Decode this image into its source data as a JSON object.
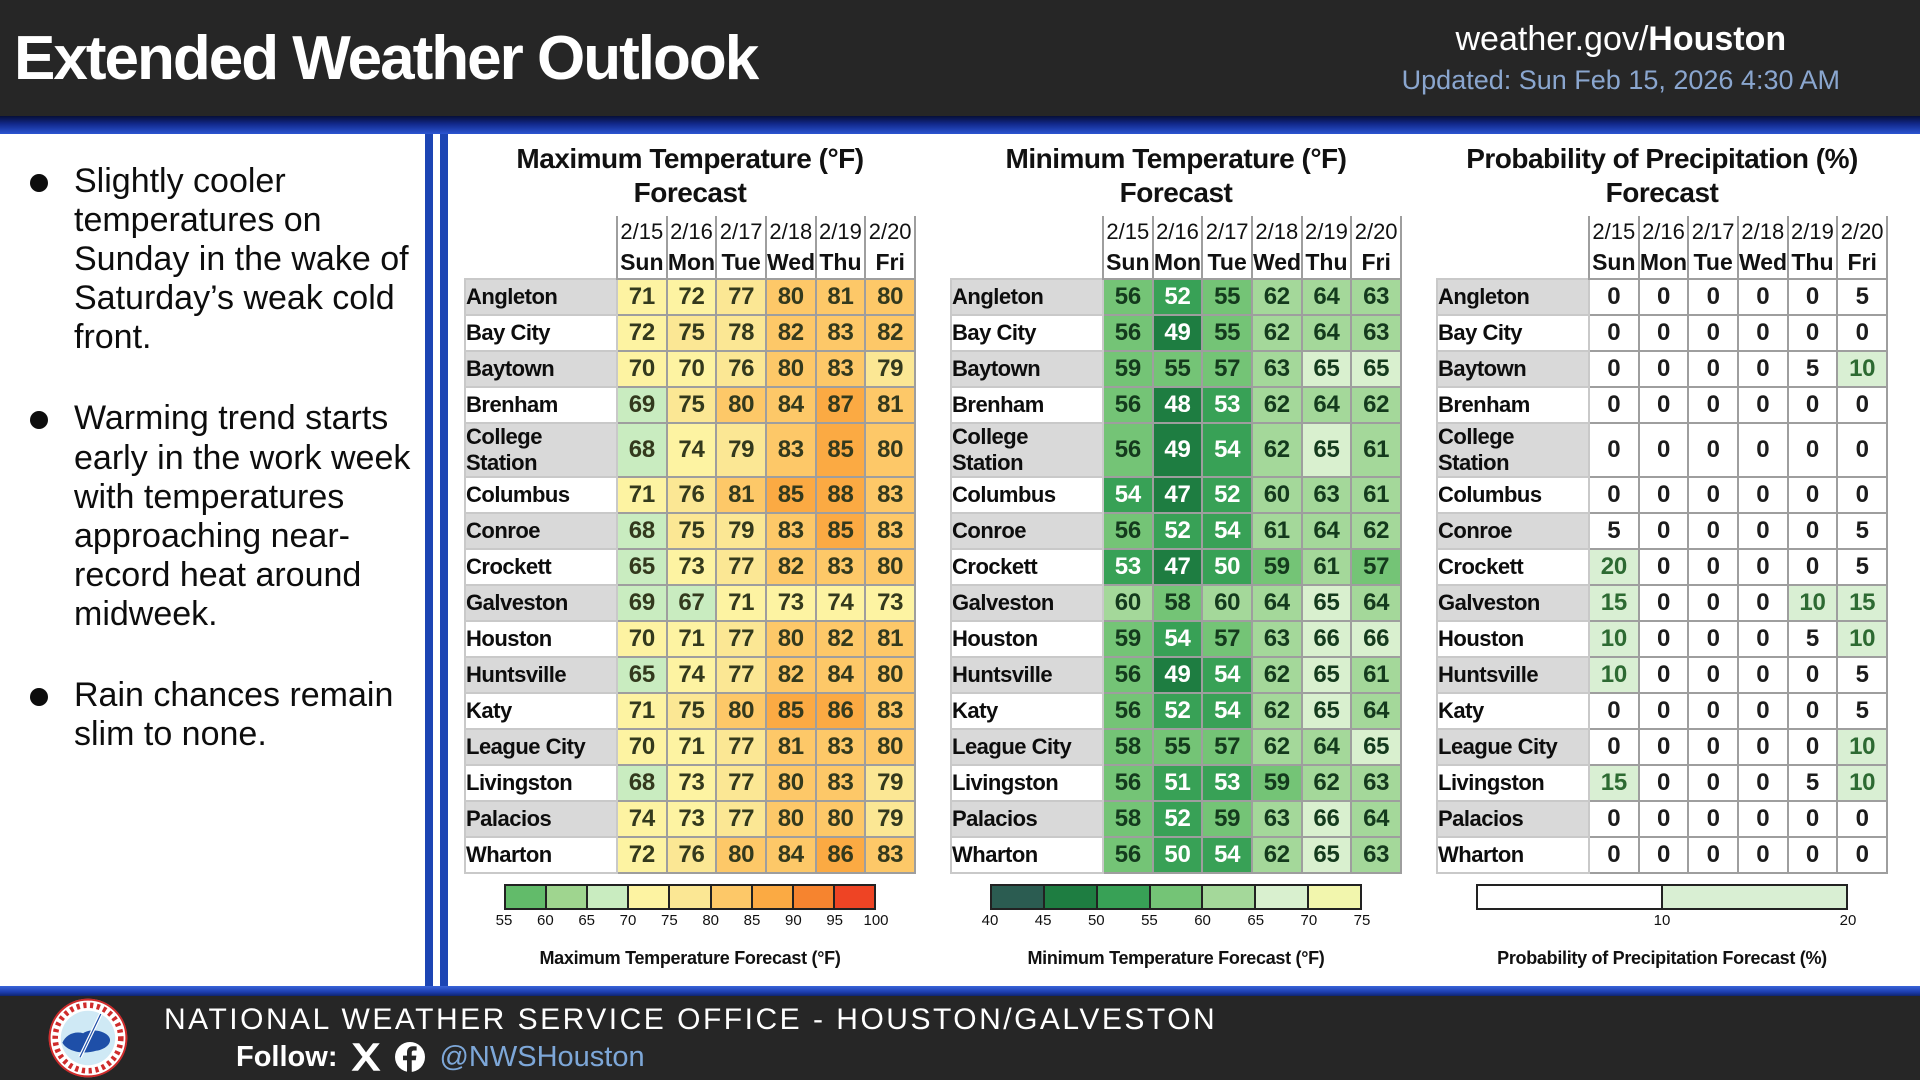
{
  "header": {
    "title": "Extended Weather Outlook",
    "site_prefix": "weather.gov/",
    "site_bold": "Houston",
    "updated": "Updated: Sun Feb 15, 2026 4:30 AM"
  },
  "bullets": [
    "Slightly cooler temperatures on Sunday in the wake of Saturday’s weak cold front.",
    "Warming trend starts early in the work week with temperatures approaching near-record heat around midweek.",
    "Rain chances remain slim to none."
  ],
  "colors": {
    "accent_blue": "#1c45b4",
    "dark_background": "#262626",
    "updated_text": "#8aa6cf",
    "handle_text": "#7da7d8",
    "row_label_gray": "#d9d9d9",
    "cell_border_gray": "#9e9e9e"
  },
  "chart_data": {
    "type": "heatmap",
    "columns": {
      "dates": [
        "2/15",
        "2/16",
        "2/17",
        "2/18",
        "2/19",
        "2/20"
      ],
      "days": [
        "Sun",
        "Mon",
        "Tue",
        "Wed",
        "Thu",
        "Fri"
      ]
    },
    "locations": [
      "Angleton",
      "Bay City",
      "Baytown",
      "Brenham",
      "College Station",
      "Columbus",
      "Conroe",
      "Crockett",
      "Galveston",
      "Houston",
      "Huntsville",
      "Katy",
      "League City",
      "Livingston",
      "Palacios",
      "Wharton"
    ],
    "tables": [
      {
        "kind": "temp",
        "title_line1": "Maximum Temperature (°F)",
        "title_line2": "Forecast",
        "scale": {
          "min": 55,
          "max": 100,
          "bin_size": 5,
          "bin_colors": [
            "#62bb6a",
            "#9fd58f",
            "#c9ecc0",
            "#fdf3a2",
            "#fbe794",
            "#fdc868",
            "#fbaa43",
            "#f6842f",
            "#ee4424"
          ],
          "tick_labels": [
            55,
            60,
            65,
            70,
            75,
            80,
            85,
            90,
            95,
            100
          ],
          "text_dark": "#33391d",
          "label": "Maximum Temperature Forecast (°F)"
        },
        "values": [
          [
            71,
            72,
            77,
            80,
            81,
            80
          ],
          [
            72,
            75,
            78,
            82,
            83,
            82
          ],
          [
            70,
            70,
            76,
            80,
            83,
            79
          ],
          [
            69,
            75,
            80,
            84,
            87,
            81
          ],
          [
            68,
            74,
            79,
            83,
            85,
            80
          ],
          [
            71,
            76,
            81,
            85,
            88,
            83
          ],
          [
            68,
            75,
            79,
            83,
            85,
            83
          ],
          [
            65,
            73,
            77,
            82,
            83,
            80
          ],
          [
            69,
            67,
            71,
            73,
            74,
            73
          ],
          [
            70,
            71,
            77,
            80,
            82,
            81
          ],
          [
            65,
            74,
            77,
            82,
            84,
            80
          ],
          [
            71,
            75,
            80,
            85,
            86,
            83
          ],
          [
            70,
            71,
            77,
            81,
            83,
            80
          ],
          [
            68,
            73,
            77,
            80,
            83,
            79
          ],
          [
            74,
            73,
            77,
            80,
            80,
            79
          ],
          [
            72,
            76,
            80,
            84,
            86,
            83
          ]
        ]
      },
      {
        "kind": "temp",
        "title_line1": "Minimum Temperature (°F)",
        "title_line2": "Forecast",
        "scale": {
          "min": 40,
          "max": 75,
          "bin_size": 5,
          "bin_colors": [
            "#2b5c51",
            "#1e7d41",
            "#38a156",
            "#74c476",
            "#a4d89a",
            "#d9f0cf",
            "#f2f6ad"
          ],
          "tick_labels": [
            40,
            45,
            50,
            55,
            60,
            65,
            70,
            75
          ],
          "text_dark": "#143a1d",
          "white_text_below": 55,
          "label": "Minimum Temperature Forecast (°F)"
        },
        "values": [
          [
            56,
            52,
            55,
            62,
            64,
            63
          ],
          [
            56,
            49,
            55,
            62,
            64,
            63
          ],
          [
            59,
            55,
            57,
            63,
            65,
            65
          ],
          [
            56,
            48,
            53,
            62,
            64,
            62
          ],
          [
            56,
            49,
            54,
            62,
            65,
            61
          ],
          [
            54,
            47,
            52,
            60,
            63,
            61
          ],
          [
            56,
            52,
            54,
            61,
            64,
            62
          ],
          [
            53,
            47,
            50,
            59,
            61,
            57
          ],
          [
            60,
            58,
            60,
            64,
            65,
            64
          ],
          [
            59,
            54,
            57,
            63,
            66,
            66
          ],
          [
            56,
            49,
            54,
            62,
            65,
            61
          ],
          [
            56,
            52,
            54,
            62,
            65,
            64
          ],
          [
            58,
            55,
            57,
            62,
            64,
            65
          ],
          [
            56,
            51,
            53,
            59,
            62,
            63
          ],
          [
            58,
            52,
            59,
            63,
            66,
            64
          ],
          [
            56,
            50,
            54,
            62,
            65,
            63
          ]
        ]
      },
      {
        "kind": "pop",
        "title_line1": "Probability of Precipitation (%)",
        "title_line2": "Forecast",
        "scale": {
          "threshold": 10,
          "green": "#d9efd3",
          "text_dark": "#1c1c1c",
          "text_green": "#2d6a32",
          "tick_labels": [
            10,
            20
          ],
          "label": "Probability of Precipitation Forecast (%)"
        },
        "values": [
          [
            0,
            0,
            0,
            0,
            0,
            5
          ],
          [
            0,
            0,
            0,
            0,
            0,
            0
          ],
          [
            0,
            0,
            0,
            0,
            5,
            10
          ],
          [
            0,
            0,
            0,
            0,
            0,
            0
          ],
          [
            0,
            0,
            0,
            0,
            0,
            0
          ],
          [
            0,
            0,
            0,
            0,
            0,
            0
          ],
          [
            5,
            0,
            0,
            0,
            0,
            5
          ],
          [
            20,
            0,
            0,
            0,
            0,
            5
          ],
          [
            15,
            0,
            0,
            0,
            10,
            15
          ],
          [
            10,
            0,
            0,
            0,
            5,
            10
          ],
          [
            10,
            0,
            0,
            0,
            0,
            5
          ],
          [
            0,
            0,
            0,
            0,
            0,
            5
          ],
          [
            0,
            0,
            0,
            0,
            0,
            10
          ],
          [
            15,
            0,
            0,
            0,
            5,
            10
          ],
          [
            0,
            0,
            0,
            0,
            0,
            0
          ],
          [
            0,
            0,
            0,
            0,
            0,
            0
          ]
        ]
      }
    ]
  },
  "footer": {
    "office": "NATIONAL WEATHER SERVICE OFFICE - HOUSTON/GALVESTON",
    "follow_label": "Follow:",
    "handle": "@NWSHouston",
    "logo_name": "nws-logo",
    "social_icons": [
      "x-icon",
      "facebook-icon"
    ]
  }
}
